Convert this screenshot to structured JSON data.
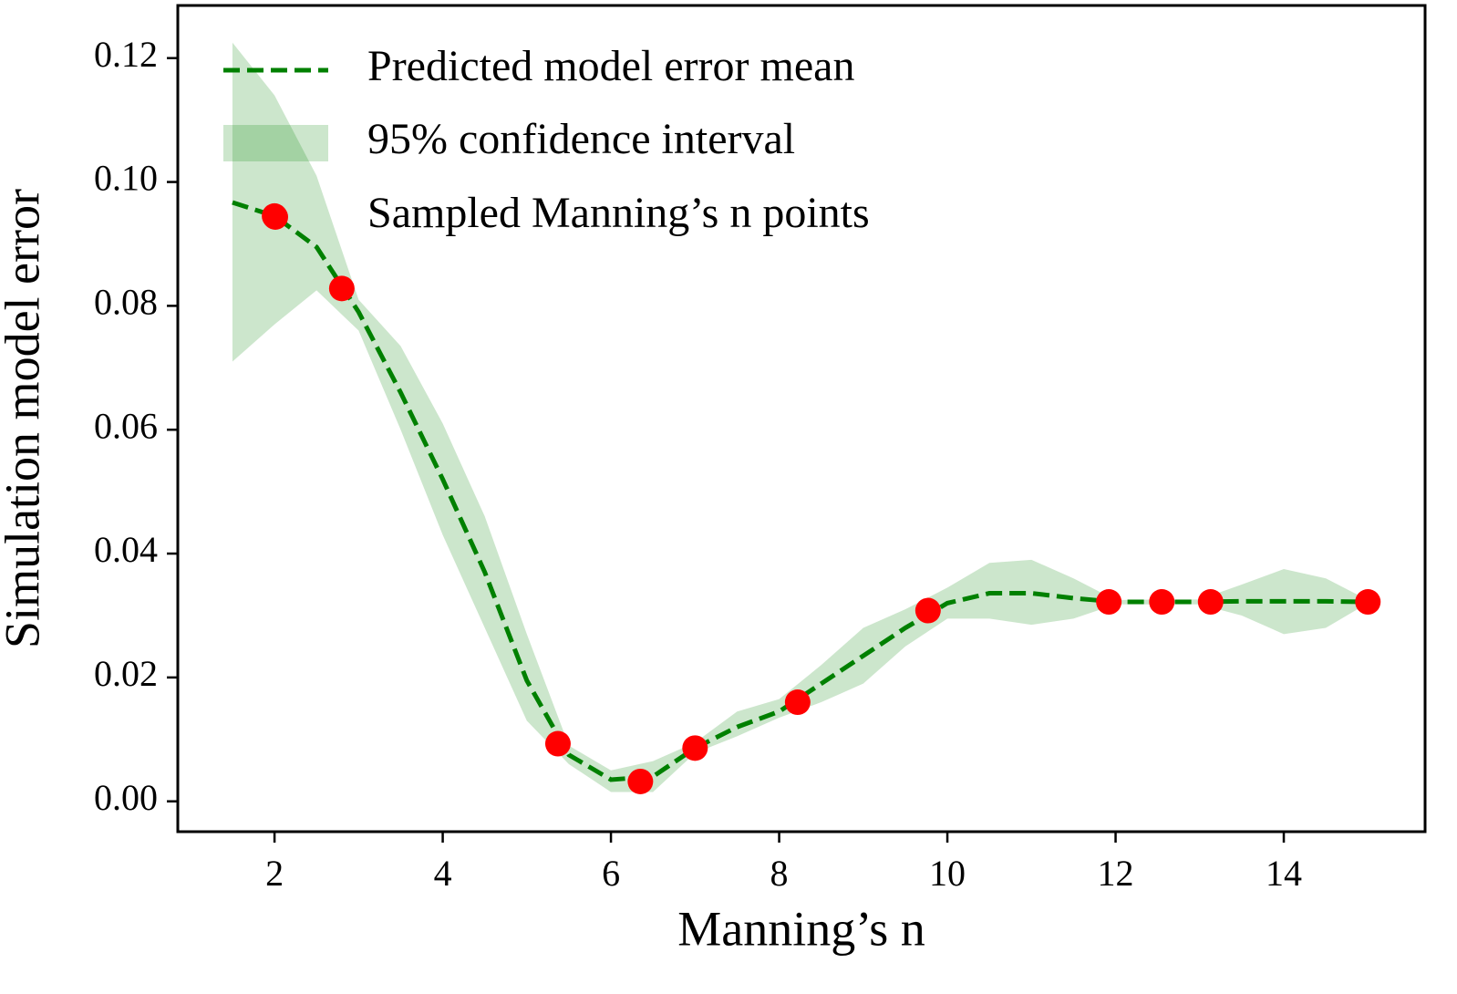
{
  "chart_data": {
    "type": "line",
    "xlabel": "Manning’s n",
    "ylabel": "Simulation model error",
    "xlim": [
      0.85,
      15.68
    ],
    "ylim": [
      -0.0049,
      0.1285
    ],
    "xticks": [
      2,
      4,
      6,
      8,
      10,
      12,
      14
    ],
    "yticks": [
      {
        "value": 0,
        "label": "0.00"
      },
      {
        "value": 0.02,
        "label": "0.02"
      },
      {
        "value": 0.04,
        "label": "0.04"
      },
      {
        "value": 0.06,
        "label": "0.06"
      },
      {
        "value": 0.08,
        "label": "0.08"
      },
      {
        "value": 0.1,
        "label": "0.10"
      },
      {
        "value": 0.12,
        "label": "0.12"
      }
    ],
    "grid": false,
    "legend": "upper left",
    "x": [
      1.5,
      2.0,
      2.5,
      3.0,
      3.5,
      4.0,
      4.5,
      5.0,
      5.5,
      6.0,
      6.5,
      7.0,
      7.5,
      8.0,
      8.5,
      9.0,
      9.5,
      10.0,
      10.5,
      11.0,
      11.5,
      12.0,
      12.5,
      13.0,
      13.5,
      14.0,
      14.5,
      15.0
    ],
    "series": [
      {
        "name": "Predicted model error mean",
        "color": "#008000",
        "values": [
          0.0967,
          0.0945,
          0.0895,
          0.079,
          0.066,
          0.052,
          0.037,
          0.0195,
          0.0075,
          0.0035,
          0.004,
          0.0086,
          0.012,
          0.0145,
          0.019,
          0.0235,
          0.028,
          0.032,
          0.0336,
          0.0336,
          0.0328,
          0.0322,
          0.0322,
          0.0322,
          0.0323,
          0.0323,
          0.0323,
          0.0322
        ]
      },
      {
        "name": "95% confidence interval",
        "color": "#008000",
        "upper": [
          0.1225,
          0.114,
          0.101,
          0.081,
          0.0735,
          0.061,
          0.046,
          0.027,
          0.009,
          0.005,
          0.0065,
          0.0095,
          0.0145,
          0.0165,
          0.022,
          0.028,
          0.031,
          0.0345,
          0.0385,
          0.039,
          0.036,
          0.0325,
          0.0326,
          0.0326,
          0.035,
          0.0375,
          0.036,
          0.0325
        ],
        "lower": [
          0.071,
          0.077,
          0.0825,
          0.076,
          0.06,
          0.043,
          0.028,
          0.013,
          0.006,
          0.0015,
          0.0015,
          0.0078,
          0.0105,
          0.0135,
          0.016,
          0.019,
          0.025,
          0.0295,
          0.0295,
          0.0285,
          0.0295,
          0.0318,
          0.0318,
          0.0318,
          0.03,
          0.027,
          0.028,
          0.032
        ]
      },
      {
        "name": "Sampled Manning’s n points",
        "color": "#ff0000",
        "x": [
          2.0,
          2.8,
          5.37,
          6.35,
          7.0,
          8.22,
          9.77,
          11.92,
          12.55,
          13.13,
          15.0
        ],
        "values": [
          0.0945,
          0.0828,
          0.0093,
          0.0032,
          0.0086,
          0.016,
          0.0308,
          0.0322,
          0.0322,
          0.0322,
          0.0322
        ]
      }
    ]
  }
}
